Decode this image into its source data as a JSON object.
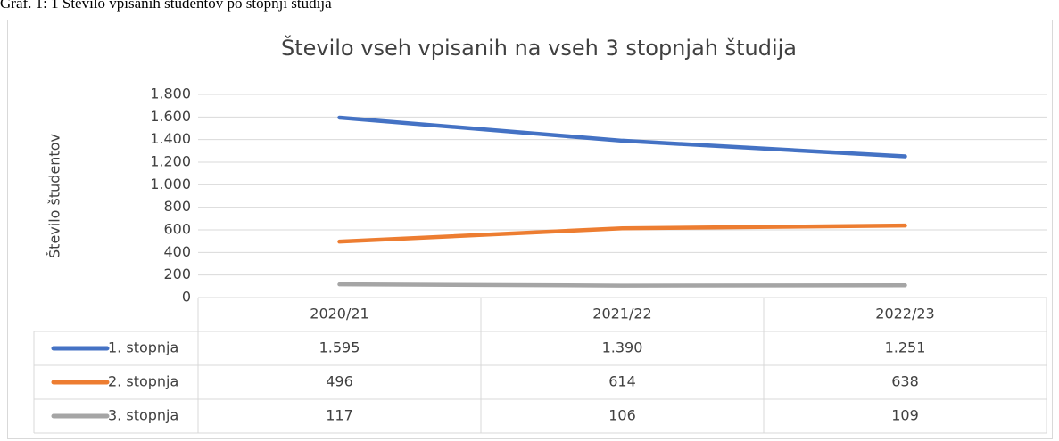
{
  "caption": "Graf. 1: 1 Število vpisanih študentov po stopnji študija",
  "chart_data": {
    "type": "line",
    "title": "Število vseh vpisanih na vseh 3 stopnjah študija",
    "y_label": "Število študentov",
    "categories": [
      "2020/21",
      "2021/22",
      "2022/23"
    ],
    "series": [
      {
        "name": "1. stopnja",
        "color": "#4472c4",
        "values": [
          1595,
          1390,
          1251
        ],
        "value_labels": [
          "1.595",
          "1.390",
          "1.251"
        ]
      },
      {
        "name": "2. stopnja",
        "color": "#ed7d31",
        "values": [
          496,
          614,
          638
        ],
        "value_labels": [
          "496",
          "614",
          "638"
        ]
      },
      {
        "name": "3. stopnja",
        "color": "#a5a5a5",
        "values": [
          117,
          106,
          109
        ],
        "value_labels": [
          "117",
          "106",
          "109"
        ]
      }
    ],
    "ylim": [
      0,
      1800
    ],
    "yticks": [
      0,
      200,
      400,
      600,
      800,
      {
        "value": 1000,
        "label": "1.000"
      },
      {
        "value": 1200,
        "label": "1.200"
      },
      {
        "value": 1400,
        "label": "1.400"
      },
      {
        "value": 1600,
        "label": "1.600"
      },
      {
        "value": 1800,
        "label": "1.800"
      }
    ],
    "grid": true,
    "data_table": true
  }
}
